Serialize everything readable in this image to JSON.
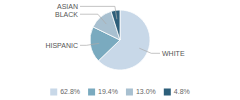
{
  "chart_data": {
    "type": "pie",
    "categories": [
      "WHITE",
      "HISPANIC",
      "BLACK",
      "ASIAN"
    ],
    "values": [
      62.8,
      19.4,
      13.0,
      4.8
    ],
    "value_labels": [
      "62.8%",
      "19.4%",
      "13.0%",
      "4.8%"
    ],
    "colors": [
      "#c8d8e8",
      "#7aaabf",
      "#a8c0d0",
      "#2d5f7a"
    ],
    "legend": "bottom"
  }
}
